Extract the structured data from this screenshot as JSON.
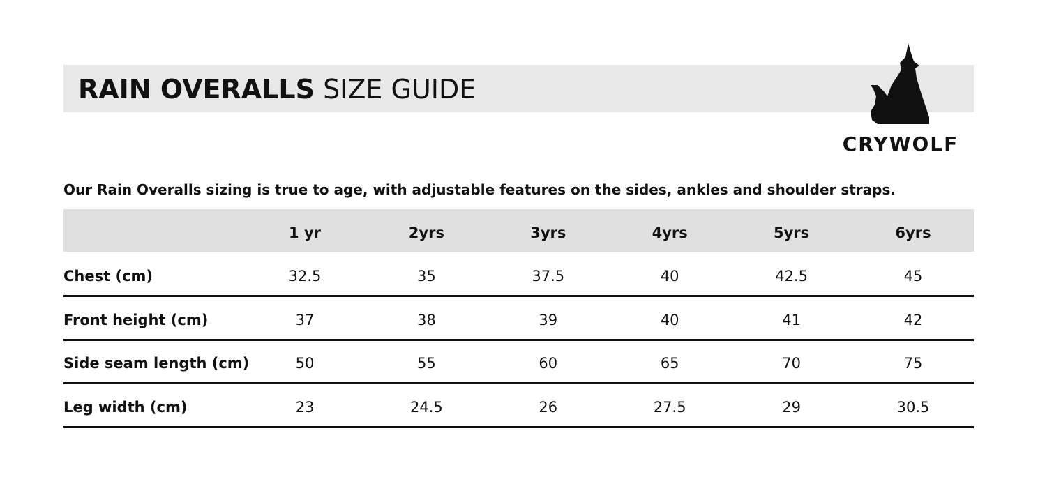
{
  "header": {
    "title_bold": "RAIN OVERALLS",
    "title_light": "SIZE GUIDE"
  },
  "brand": {
    "name": "CRYWOLF"
  },
  "intro": "Our Rain Overalls sizing is true to age, with adjustable features on the sides, ankles and shoulder straps.",
  "table": {
    "columns": [
      "1 yr",
      "2yrs",
      "3yrs",
      "4yrs",
      "5yrs",
      "6yrs"
    ],
    "rows": [
      {
        "label": "Chest (cm)",
        "values": [
          32.5,
          35,
          37.5,
          40,
          42.5,
          45
        ]
      },
      {
        "label": "Front height (cm)",
        "values": [
          37,
          38,
          39,
          40,
          41,
          42
        ]
      },
      {
        "label": "Side seam length (cm)",
        "values": [
          50,
          55,
          60,
          65,
          70,
          75
        ]
      },
      {
        "label": "Leg width (cm)",
        "values": [
          23,
          24.5,
          26,
          27.5,
          29,
          30.5
        ]
      }
    ]
  }
}
